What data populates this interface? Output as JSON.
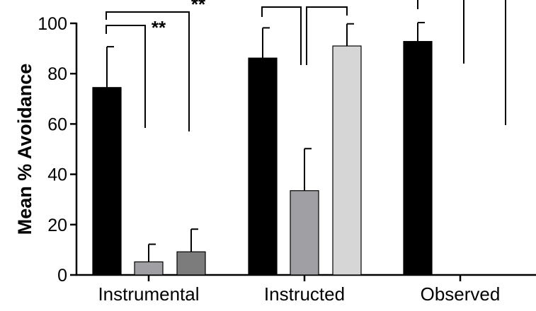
{
  "chart_data": {
    "type": "bar",
    "title": "",
    "xlabel": "",
    "ylabel": "Mean % Avoidance",
    "ylim": [
      0,
      100
    ],
    "yticks": [
      0,
      20,
      40,
      60,
      80,
      100
    ],
    "grid": false,
    "legend": "none",
    "categories": [
      "Instrumental",
      "Instructed",
      "Observed"
    ],
    "bar_colors": [
      "#000000",
      "#a0a0a4",
      "#7c7c7c",
      "#d6d6d6"
    ],
    "bars": [
      {
        "group": "Instrumental",
        "value": 74.5,
        "error": 16.2,
        "color": "#000000"
      },
      {
        "group": "Instrumental",
        "value": 5.2,
        "error": 7.0,
        "color": "#a0a0a4"
      },
      {
        "group": "Instrumental",
        "value": 9.2,
        "error": 9.0,
        "color": "#7c7c7c"
      },
      {
        "group": "Instructed",
        "value": 86.2,
        "error": 12.0,
        "color": "#000000"
      },
      {
        "group": "Instructed",
        "value": 33.5,
        "error": 16.7,
        "color": "#a0a0a4"
      },
      {
        "group": "Instructed",
        "value": 91.0,
        "error": 8.8,
        "color": "#d6d6d6"
      },
      {
        "group": "Observed",
        "value": 92.8,
        "error": 7.5,
        "color": "#000000"
      }
    ],
    "significance_labels": [
      "**",
      "**",
      "**"
    ]
  }
}
